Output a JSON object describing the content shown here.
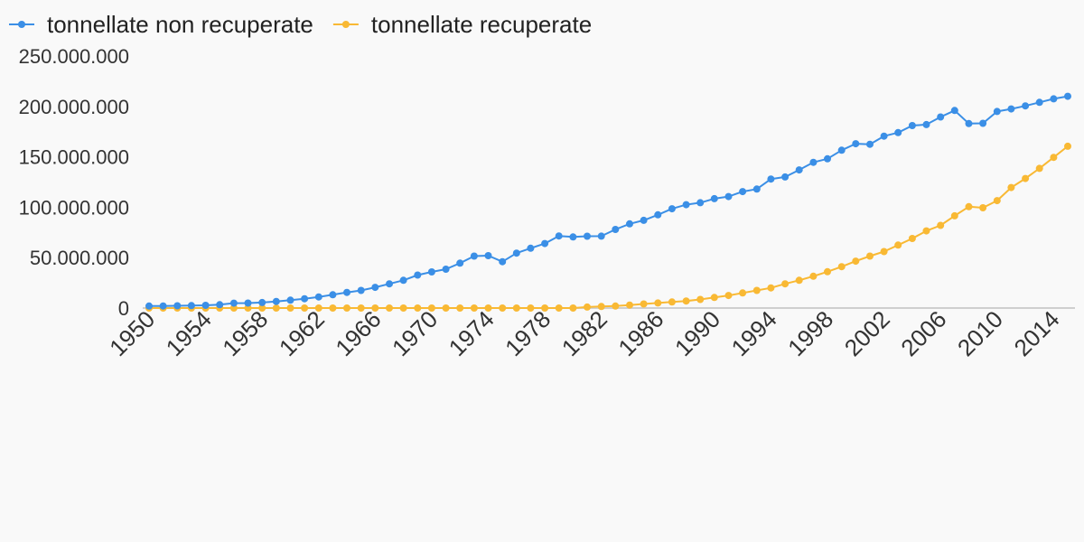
{
  "chart_data": {
    "type": "line",
    "x": [
      1950,
      1951,
      1952,
      1953,
      1954,
      1955,
      1956,
      1957,
      1958,
      1959,
      1960,
      1961,
      1962,
      1963,
      1964,
      1965,
      1966,
      1967,
      1968,
      1969,
      1970,
      1971,
      1972,
      1973,
      1974,
      1975,
      1976,
      1977,
      1978,
      1979,
      1980,
      1981,
      1982,
      1983,
      1984,
      1985,
      1986,
      1987,
      1988,
      1989,
      1990,
      1991,
      1992,
      1993,
      1994,
      1995,
      1996,
      1997,
      1998,
      1999,
      2000,
      2001,
      2002,
      2003,
      2004,
      2005,
      2006,
      2007,
      2008,
      2009,
      2010,
      2011,
      2012,
      2013,
      2014,
      2015
    ],
    "x_tick_labels": [
      "1950",
      "1954",
      "1958",
      "1962",
      "1966",
      "1970",
      "1974",
      "1978",
      "1982",
      "1986",
      "1990",
      "1994",
      "1998",
      "2002",
      "2006",
      "2010",
      "2014"
    ],
    "y_tick_labels": [
      "0",
      "50.000.000",
      "100.000.000",
      "150.000.000",
      "200.000.000",
      "250.000.000"
    ],
    "ylim": [
      0,
      250000000
    ],
    "grid": false,
    "legend_position": "top-left",
    "series": [
      {
        "name": "tonnellate non recuperate",
        "color": "#3b8fe6",
        "values": [
          2000000,
          2100000,
          2200000,
          2400000,
          2700000,
          3300000,
          4800000,
          4900000,
          5500000,
          6500000,
          7800000,
          9200000,
          11000000,
          13200000,
          15500000,
          17500000,
          20500000,
          24000000,
          27500000,
          32700000,
          35800000,
          38500000,
          44500000,
          51500000,
          52000000,
          46000000,
          54500000,
          59300000,
          64000000,
          71500000,
          70500000,
          71200000,
          71300000,
          78000000,
          83500000,
          87000000,
          92500000,
          98500000,
          102500000,
          104500000,
          108500000,
          110600000,
          115500000,
          118000000,
          128000000,
          130000000,
          137000000,
          144500000,
          148000000,
          156500000,
          163000000,
          162500000,
          170500000,
          174000000,
          181000000,
          182000000,
          189500000,
          196000000,
          183000000,
          183200000,
          195000000,
          197500000,
          200500000,
          204000000,
          207500000,
          210000000
        ]
      },
      {
        "name": "tonnellate recuperate",
        "color": "#f9b934",
        "values": [
          0,
          0,
          0,
          0,
          0,
          0,
          0,
          0,
          0,
          0,
          0,
          0,
          0,
          0,
          0,
          0,
          0,
          0,
          0,
          0,
          0,
          0,
          0,
          0,
          0,
          0,
          0,
          0,
          0,
          0,
          0,
          1000000,
          1500000,
          2000000,
          3000000,
          4000000,
          5000000,
          6000000,
          7000000,
          8500000,
          10500000,
          12500000,
          15000000,
          17500000,
          20000000,
          24000000,
          27500000,
          31500000,
          36000000,
          41000000,
          46500000,
          51500000,
          56000000,
          62500000,
          69000000,
          76500000,
          82000000,
          91500000,
          100500000,
          99500000,
          106500000,
          119500000,
          128500000,
          138500000,
          149500000,
          160500000
        ]
      }
    ]
  }
}
